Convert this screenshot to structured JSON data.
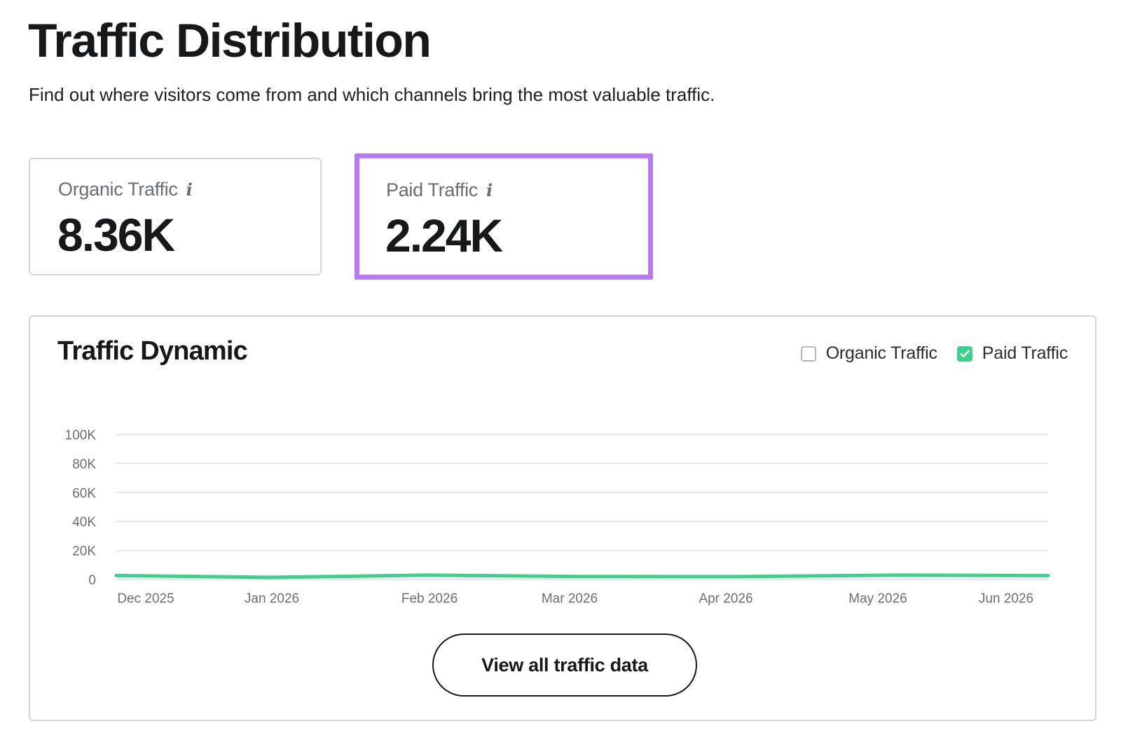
{
  "page": {
    "title": "Traffic Distribution",
    "subtitle": "Find out where visitors come from and which channels bring the most valuable traffic."
  },
  "metrics": [
    {
      "label": "Organic Traffic",
      "value": "8.36K",
      "info_icon": "info-icon",
      "highlighted": false
    },
    {
      "label": "Paid Traffic",
      "value": "2.24K",
      "info_icon": "info-icon",
      "highlighted": true,
      "highlight_color": "#b77af4"
    }
  ],
  "traffic_dynamic": {
    "title": "Traffic Dynamic",
    "legend": [
      {
        "label": "Organic Traffic",
        "checked": false
      },
      {
        "label": "Paid Traffic",
        "checked": true,
        "color": "#3fcf8e"
      }
    ],
    "button_label": "View all traffic data"
  },
  "chart_data": {
    "type": "line",
    "title": "Traffic Dynamic",
    "xlabel": "",
    "ylabel": "",
    "x_ticks": [
      "Dec 2025",
      "Jan 2026",
      "Feb 2026",
      "Mar 2026",
      "Apr 2026",
      "May 2026",
      "Jun 2026"
    ],
    "y_ticks": [
      "100K",
      "80K",
      "60K",
      "40K",
      "20K",
      "0"
    ],
    "ylim": [
      0,
      100000
    ],
    "grid": true,
    "legend": "top-right",
    "series": [
      {
        "name": "Paid Traffic",
        "color": "#3fcf8e",
        "visible": true,
        "x": [
          "Dec 2025",
          "Jan 2026",
          "Feb 2026",
          "Mar 2026",
          "Apr 2026",
          "May 2026",
          "Jun 2026"
        ],
        "values": [
          2200,
          1000,
          2500,
          1600,
          1500,
          2500,
          2240
        ]
      }
    ]
  }
}
